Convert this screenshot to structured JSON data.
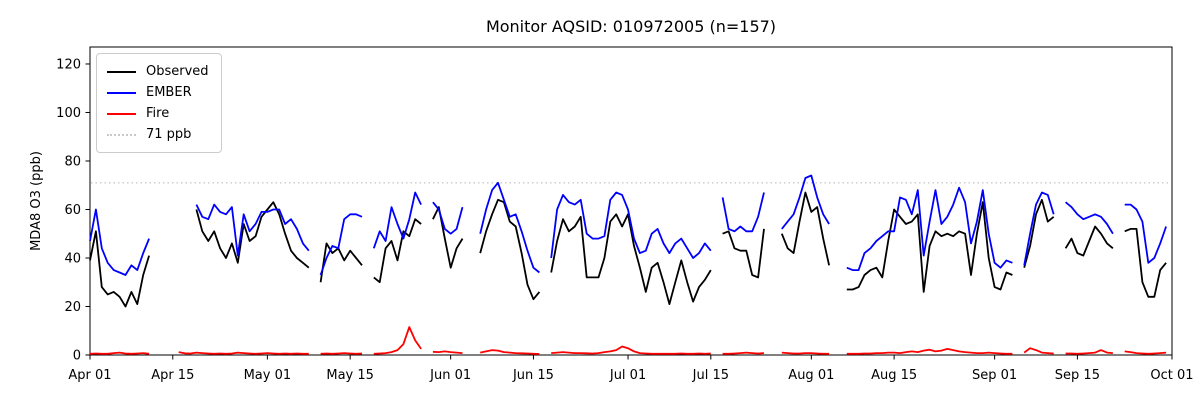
{
  "title": "Monitor AQSID: 010972005 (n=157)",
  "chart_data": {
    "type": "line",
    "title": "Monitor AQSID: 010972005 (n=157)",
    "xlabel": "",
    "ylabel": "MDA8 O3 (ppb)",
    "ylim": [
      0,
      127
    ],
    "x_range_days": 183,
    "grid": false,
    "background": "#ffffff",
    "y_ticks": [
      0,
      20,
      40,
      60,
      80,
      100,
      120
    ],
    "x_ticks": [
      {
        "day": 0,
        "label": "Apr 01"
      },
      {
        "day": 14,
        "label": "Apr 15"
      },
      {
        "day": 30,
        "label": "May 01"
      },
      {
        "day": 44,
        "label": "May 15"
      },
      {
        "day": 61,
        "label": "Jun 01"
      },
      {
        "day": 75,
        "label": "Jun 15"
      },
      {
        "day": 91,
        "label": "Jul 01"
      },
      {
        "day": 105,
        "label": "Jul 15"
      },
      {
        "day": 122,
        "label": "Aug 01"
      },
      {
        "day": 136,
        "label": "Aug 15"
      },
      {
        "day": 153,
        "label": "Sep 01"
      },
      {
        "day": 167,
        "label": "Sep 15"
      },
      {
        "day": 183,
        "label": "Oct 01"
      }
    ],
    "threshold": {
      "value": 71,
      "label": "71 ppb",
      "color": "#c9c9c9",
      "style": "dotted"
    },
    "legend": {
      "position": "upper-left",
      "items": [
        {
          "label": "Observed",
          "color": "#000000",
          "style": "solid"
        },
        {
          "label": "EMBER",
          "color": "#0000ff",
          "style": "solid"
        },
        {
          "label": "Fire",
          "color": "#ff0000",
          "style": "solid"
        },
        {
          "label": "71 ppb",
          "color": "#c9c9c9",
          "style": "dotted"
        }
      ]
    },
    "series": [
      {
        "name": "Observed",
        "color": "#000000",
        "values": [
          39,
          51,
          28,
          25,
          26,
          24,
          20,
          26,
          21,
          33,
          41,
          null,
          null,
          null,
          null,
          null,
          null,
          null,
          60,
          51,
          47,
          51,
          44,
          40,
          46,
          38,
          54,
          47,
          49,
          57,
          60,
          63,
          58,
          50,
          43,
          40,
          38,
          36,
          null,
          30,
          46,
          42,
          44,
          39,
          43,
          40,
          37,
          null,
          32,
          30,
          44,
          47,
          39,
          51,
          49,
          56,
          54,
          null,
          56,
          61,
          48,
          36,
          44,
          48,
          null,
          null,
          42,
          51,
          58,
          64,
          63,
          55,
          53,
          42,
          29,
          23,
          26,
          null,
          34,
          47,
          56,
          51,
          53,
          57,
          32,
          32,
          32,
          40,
          55,
          58,
          53,
          58,
          45,
          36,
          26,
          36,
          38,
          30,
          21,
          30,
          39,
          30,
          22,
          28,
          31,
          35,
          null,
          50,
          51,
          44,
          43,
          43,
          33,
          32,
          52,
          null,
          null,
          50,
          44,
          42,
          55,
          67,
          59,
          61,
          48,
          37,
          null,
          null,
          27,
          27,
          28,
          33,
          35,
          36,
          32,
          47,
          60,
          57,
          54,
          55,
          58,
          26,
          45,
          51,
          49,
          50,
          49,
          51,
          50,
          33,
          50,
          63,
          40,
          28,
          27,
          34,
          33,
          null,
          36,
          45,
          58,
          64,
          55,
          57,
          null,
          44,
          48,
          42,
          41,
          47,
          53,
          50,
          46,
          44,
          null,
          51,
          52,
          52,
          30,
          24,
          24,
          35,
          38
        ]
      },
      {
        "name": "EMBER",
        "color": "#0000ff",
        "values": [
          47,
          60,
          44,
          38,
          35,
          34,
          33,
          37,
          35,
          42,
          48,
          null,
          null,
          null,
          null,
          null,
          null,
          null,
          62,
          57,
          56,
          62,
          59,
          58,
          61,
          41,
          58,
          51,
          54,
          59,
          59,
          60,
          60,
          54,
          56,
          52,
          46,
          43,
          null,
          33,
          40,
          45,
          44,
          56,
          58,
          58,
          57,
          null,
          44,
          51,
          47,
          61,
          54,
          48,
          56,
          67,
          62,
          null,
          63,
          60,
          52,
          50,
          52,
          61,
          null,
          null,
          50,
          60,
          68,
          71,
          64,
          57,
          58,
          51,
          43,
          36,
          34,
          null,
          40,
          60,
          66,
          63,
          62,
          64,
          50,
          48,
          48,
          49,
          64,
          67,
          66,
          60,
          48,
          42,
          43,
          50,
          52,
          46,
          42,
          46,
          48,
          44,
          40,
          42,
          46,
          43,
          null,
          65,
          52,
          51,
          53,
          51,
          51,
          57,
          67,
          null,
          null,
          52,
          55,
          58,
          65,
          73,
          74,
          65,
          58,
          54,
          null,
          null,
          36,
          35,
          35,
          42,
          44,
          47,
          49,
          51,
          51,
          65,
          64,
          58,
          68,
          41,
          55,
          68,
          54,
          57,
          62,
          69,
          63,
          46,
          55,
          68,
          50,
          38,
          36,
          39,
          38,
          null,
          37,
          50,
          62,
          67,
          66,
          58,
          null,
          63,
          61,
          58,
          56,
          57,
          58,
          57,
          54,
          50,
          null,
          62,
          62,
          60,
          55,
          38,
          40,
          46,
          53
        ]
      },
      {
        "name": "Fire",
        "color": "#ff0000",
        "values": [
          0.5,
          0.6,
          0.5,
          0.5,
          0.8,
          1.0,
          0.6,
          0.5,
          0.6,
          0.8,
          0.5,
          null,
          null,
          null,
          null,
          1.2,
          0.7,
          0.6,
          1.0,
          0.8,
          0.6,
          0.5,
          0.6,
          0.5,
          0.6,
          1.0,
          0.8,
          0.6,
          0.5,
          0.6,
          0.8,
          0.6,
          0.5,
          0.6,
          0.5,
          0.6,
          0.5,
          0.5,
          null,
          0.5,
          0.6,
          0.5,
          0.6,
          0.8,
          0.6,
          0.5,
          0.6,
          null,
          0.5,
          0.6,
          0.8,
          1.2,
          2.0,
          4.5,
          11.5,
          6.0,
          2.5,
          null,
          1.3,
          1.2,
          1.5,
          1.2,
          1.0,
          0.8,
          null,
          null,
          1.0,
          1.5,
          2.0,
          1.8,
          1.2,
          1.0,
          0.8,
          0.7,
          0.6,
          0.5,
          0.4,
          null,
          0.8,
          1.0,
          1.2,
          1.0,
          0.8,
          0.8,
          0.7,
          0.6,
          0.8,
          1.2,
          1.5,
          2.0,
          3.5,
          2.8,
          1.5,
          0.8,
          0.6,
          0.5,
          0.5,
          0.5,
          0.5,
          0.5,
          0.6,
          0.5,
          0.5,
          0.6,
          0.5,
          0.6,
          null,
          0.5,
          0.5,
          0.6,
          0.8,
          1.0,
          0.8,
          0.6,
          0.8,
          null,
          null,
          1.0,
          0.8,
          0.6,
          0.6,
          0.8,
          0.8,
          0.6,
          0.5,
          0.5,
          null,
          null,
          0.5,
          0.5,
          0.5,
          0.6,
          0.6,
          0.8,
          0.8,
          1.0,
          1.0,
          0.8,
          1.2,
          1.5,
          1.2,
          1.8,
          2.2,
          1.5,
          1.8,
          2.5,
          2.0,
          1.5,
          1.2,
          1.0,
          0.8,
          0.8,
          1.0,
          0.8,
          0.6,
          0.5,
          0.5,
          null,
          1.0,
          2.8,
          2.0,
          1.0,
          0.8,
          0.6,
          null,
          0.6,
          0.6,
          0.5,
          0.6,
          0.8,
          1.0,
          2.0,
          1.0,
          0.8,
          null,
          1.5,
          1.2,
          0.8,
          0.6,
          0.5,
          0.6,
          0.8,
          1.0
        ]
      }
    ]
  }
}
